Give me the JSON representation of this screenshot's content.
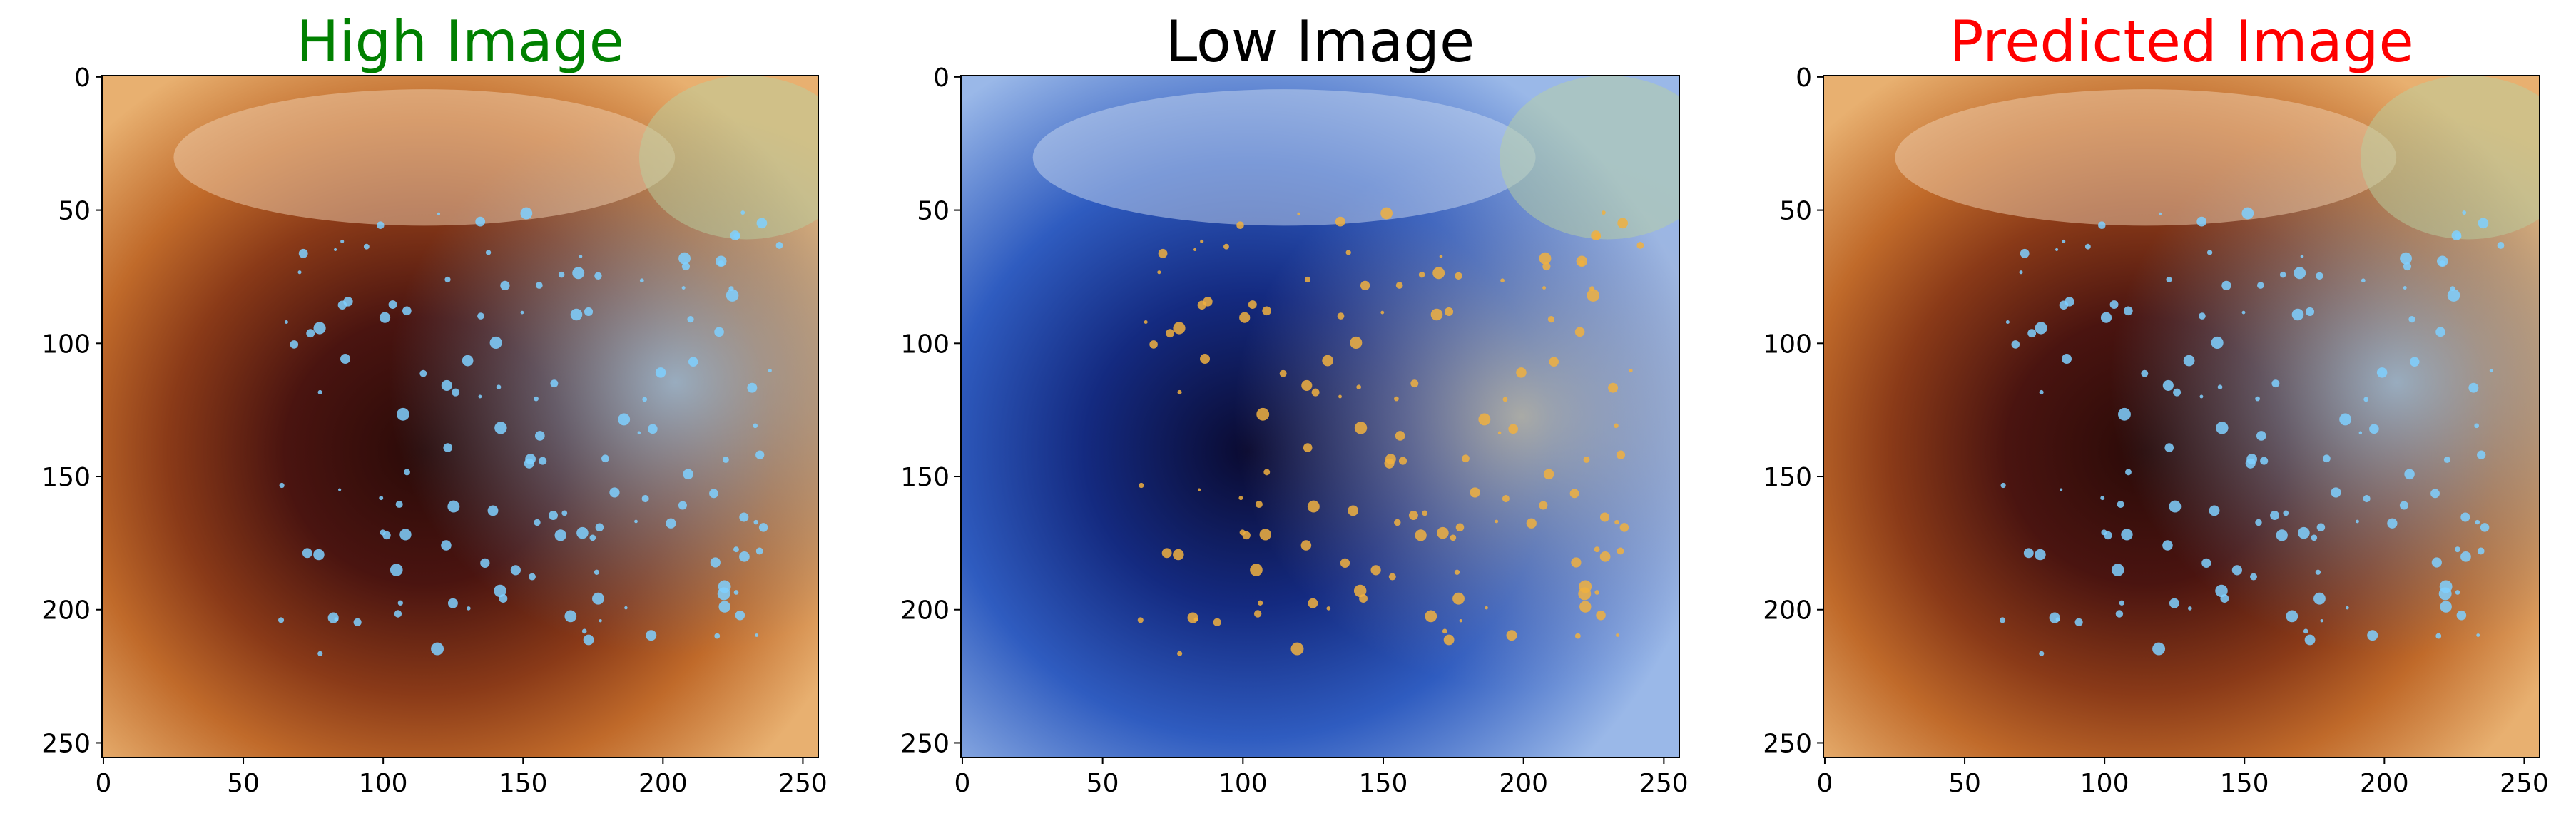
{
  "chart_data": [
    {
      "type": "image",
      "title": "High Image",
      "title_color": "#008000",
      "palette": "warm",
      "xlim": [
        -0.5,
        255.5
      ],
      "ylim": [
        255.5,
        -0.5
      ],
      "xticks": [
        0,
        50,
        100,
        150,
        200,
        250
      ],
      "yticks": [
        0,
        50,
        100,
        150,
        200,
        250
      ]
    },
    {
      "type": "image",
      "title": "Low Image",
      "title_color": "#000000",
      "palette": "cool",
      "xlim": [
        -0.5,
        255.5
      ],
      "ylim": [
        255.5,
        -0.5
      ],
      "xticks": [
        0,
        50,
        100,
        150,
        200,
        250
      ],
      "yticks": [
        0,
        50,
        100,
        150,
        200,
        250
      ]
    },
    {
      "type": "image",
      "title": "Predicted Image",
      "title_color": "#ff0000",
      "palette": "warm",
      "xlim": [
        -0.5,
        255.5
      ],
      "ylim": [
        255.5,
        -0.5
      ],
      "xticks": [
        0,
        50,
        100,
        150,
        200,
        250
      ],
      "yticks": [
        0,
        50,
        100,
        150,
        200,
        250
      ]
    }
  ]
}
